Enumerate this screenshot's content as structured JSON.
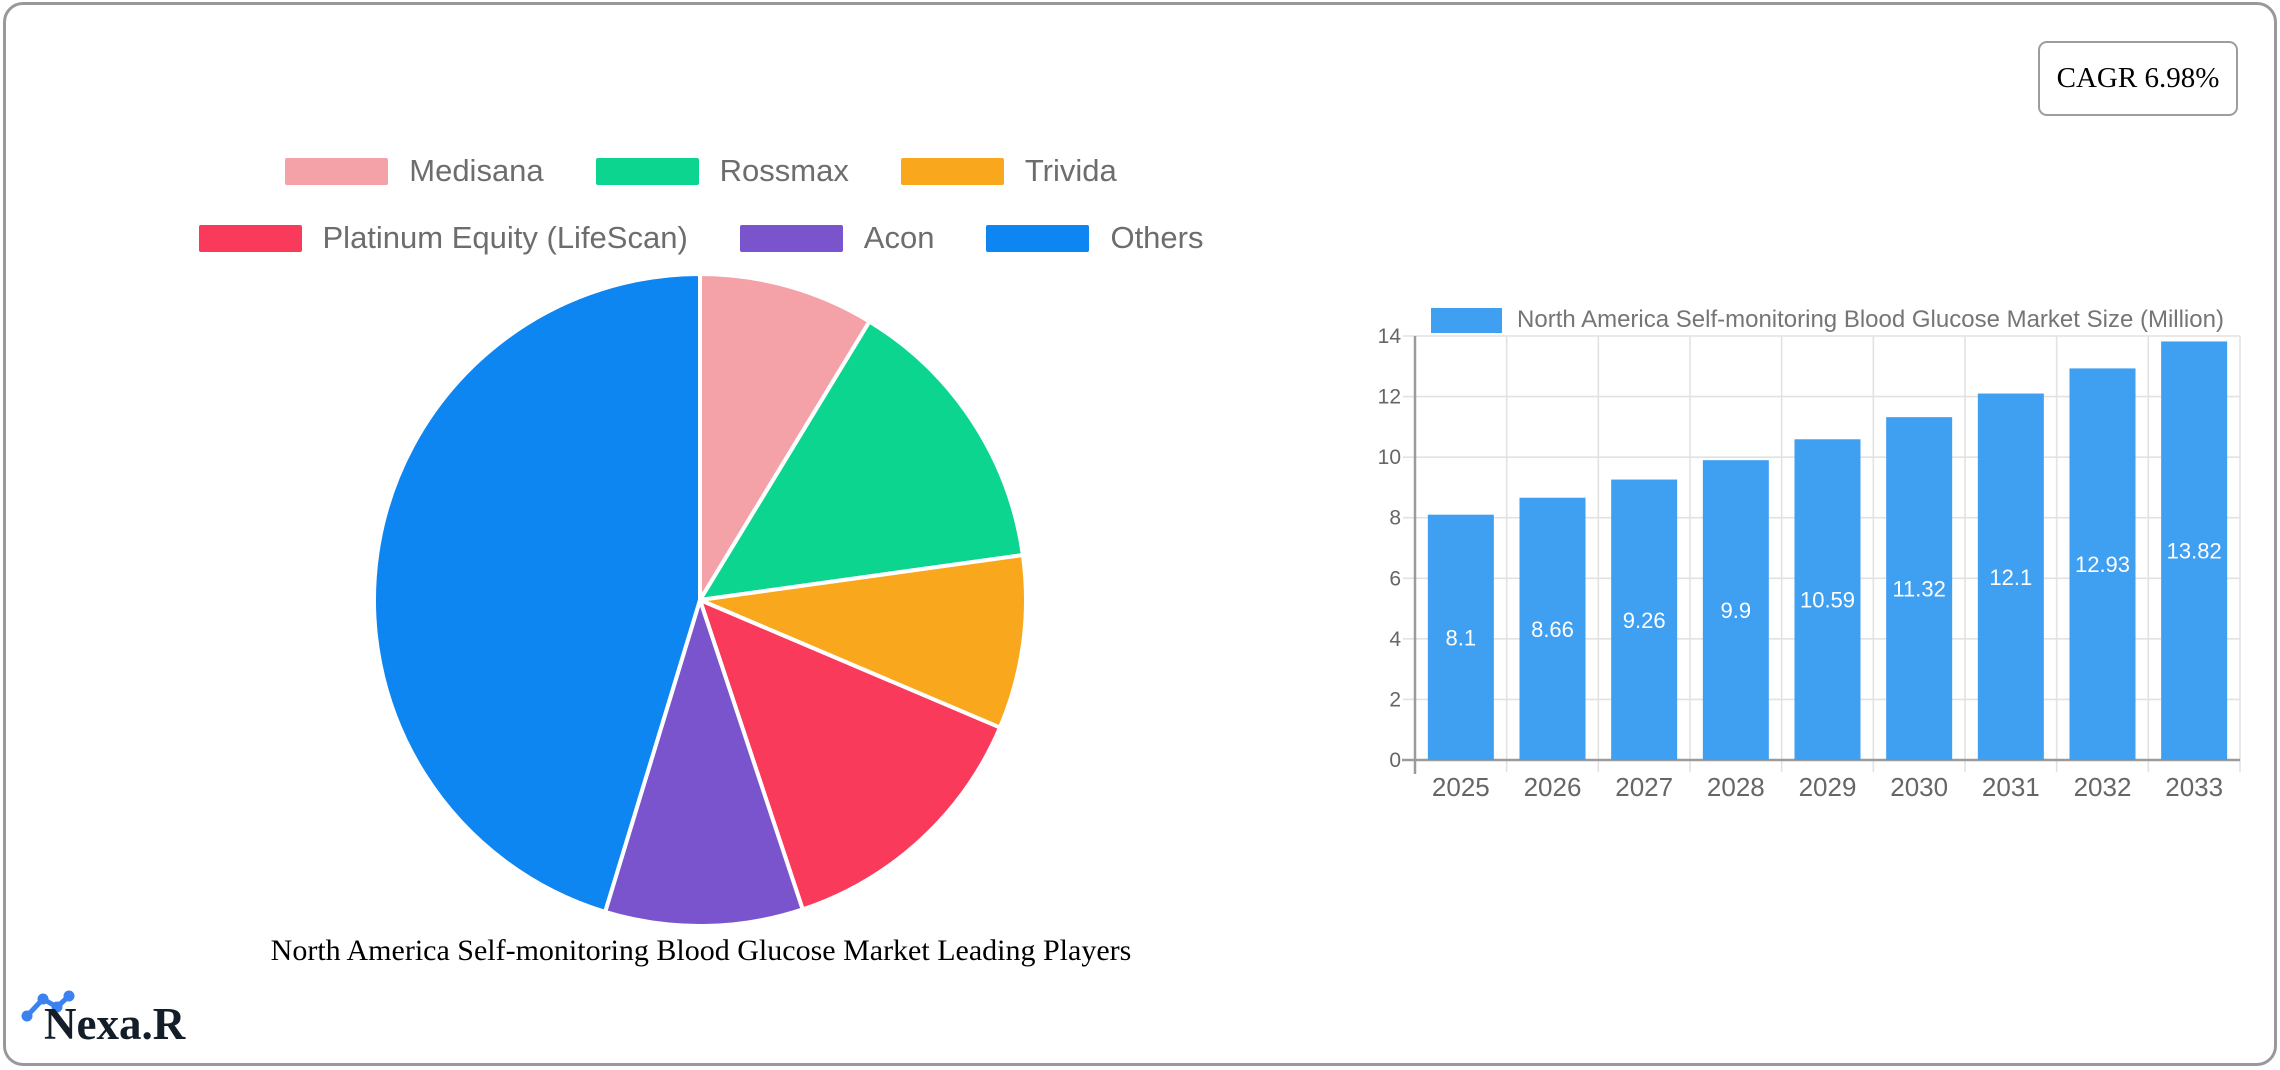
{
  "page": {
    "badge_label": "CAGR 6.98%",
    "logo_text": "Nexa.R"
  },
  "chart_data": [
    {
      "type": "pie",
      "title": "North America Self-monitoring Blood Glucose Market Leading Players",
      "labels": [
        "Medisana",
        "Rossmax",
        "Trivida",
        "Platinum Equity (LifeScan)",
        "Acon",
        "Others"
      ],
      "values_percent": [
        8.7,
        14.1,
        8.6,
        13.5,
        9.8,
        45.3
      ],
      "colors": [
        "#f4a1a7",
        "#0cd590",
        "#f9a71d",
        "#f93a5b",
        "#7a54cd",
        "#0d86f2"
      ],
      "legend_rows": [
        [
          0,
          1,
          2
        ],
        [
          3,
          4,
          5
        ]
      ],
      "start_angle_deg": 0,
      "clockwise": true,
      "slice_border_color": "#ffffff",
      "legend_position": "top",
      "legend_text_color": "#6d6d6d"
    },
    {
      "type": "bar",
      "legend_label": "North America Self-monitoring Blood Glucose Market Size (Million)",
      "categories": [
        "2025",
        "2026",
        "2027",
        "2028",
        "2029",
        "2030",
        "2031",
        "2032",
        "2033"
      ],
      "values": [
        8.1,
        8.66,
        9.26,
        9.9,
        10.59,
        11.32,
        12.1,
        12.93,
        13.82
      ],
      "bar_color": "#3f9ff1",
      "value_label_color": "#ffffff",
      "ylim": [
        0,
        14
      ],
      "yticks": [
        0,
        2,
        4,
        6,
        8,
        10,
        12,
        14
      ],
      "grid": true,
      "grid_color": "#e2e2e2",
      "axis_color": "#9b9b9b",
      "tick_text_color": "#666666",
      "legend_position": "top"
    }
  ]
}
